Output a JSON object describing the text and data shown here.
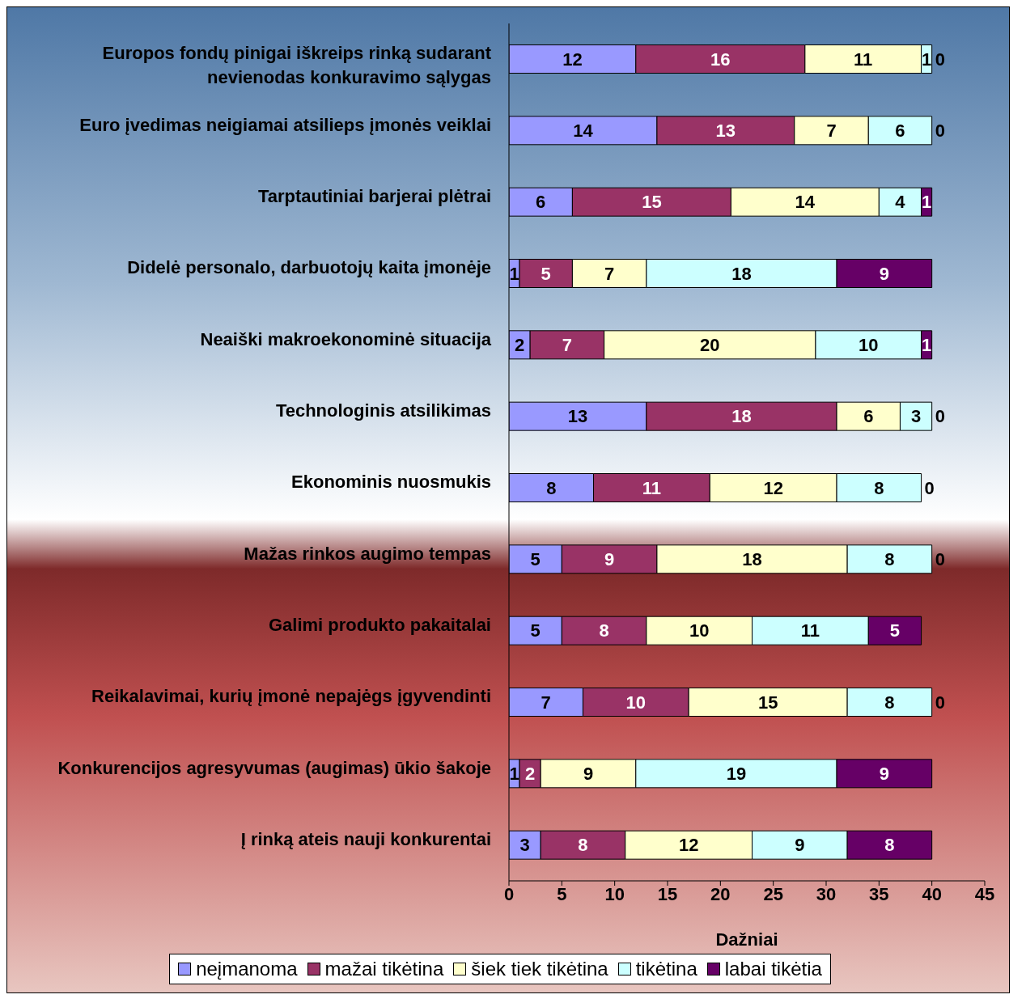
{
  "chart_data": {
    "type": "bar",
    "orientation": "horizontal",
    "stacked": true,
    "data_labels": true,
    "xlabel": "Dažniai",
    "xlim": [
      0,
      45
    ],
    "xticks": [
      0,
      5,
      10,
      15,
      20,
      25,
      30,
      35,
      40,
      45
    ],
    "grid": false,
    "legend": "bottom",
    "categories": [
      "Europos fondų pinigai iškreips rinką sudarant nevienodas konkuravimo sąlygas",
      "Euro įvedimas neigiamai atsilieps įmonės veiklai",
      "Tarptautiniai barjerai plėtrai",
      "Didelė personalo, darbuotojų kaita įmonėje",
      "Neaiški makroekonominė situacija",
      "Technologinis atsilikimas",
      "Ekonominis nuosmukis",
      "Mažas rinkos augimo tempas",
      "Galimi produkto pakaitalai",
      "Reikalavimai, kurių įmonė nepajėgs įgyvendinti",
      "Konkurencijos agresyvumas (augimas) ūkio šakoje",
      "Į rinką ateis nauji konkurentai"
    ],
    "series": [
      {
        "name": "neįmanoma",
        "color": "#9999ff",
        "values": [
          12,
          14,
          6,
          1,
          2,
          13,
          8,
          5,
          5,
          7,
          1,
          3
        ]
      },
      {
        "name": "mažai tikėtina",
        "color": "#993366",
        "values": [
          16,
          13,
          15,
          5,
          7,
          18,
          11,
          9,
          8,
          10,
          2,
          8
        ]
      },
      {
        "name": "šiek tiek tikėtina",
        "color": "#ffffcc",
        "values": [
          11,
          7,
          14,
          7,
          20,
          6,
          12,
          18,
          10,
          15,
          9,
          12
        ]
      },
      {
        "name": "tikėtina",
        "color": "#ccffff",
        "values": [
          1,
          6,
          4,
          18,
          10,
          3,
          8,
          8,
          11,
          8,
          19,
          9
        ]
      },
      {
        "name": "labai tikėtia",
        "color": "#660066",
        "values": [
          0,
          0,
          1,
          9,
          1,
          0,
          0,
          0,
          5,
          0,
          9,
          8
        ]
      }
    ]
  }
}
